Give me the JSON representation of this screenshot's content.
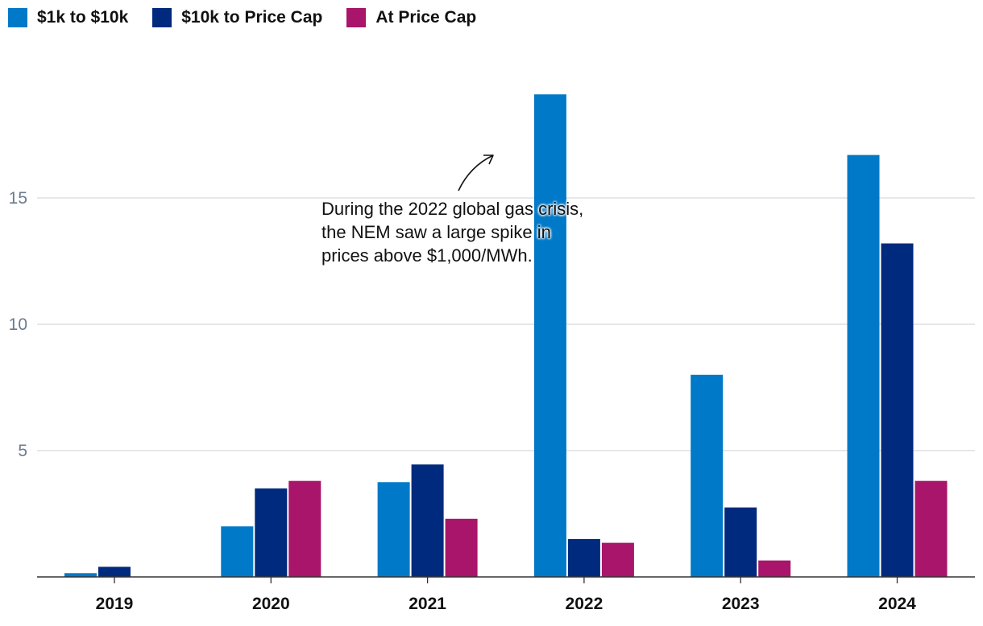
{
  "chart_data": {
    "type": "bar",
    "categories": [
      "2019",
      "2020",
      "2021",
      "2022",
      "2023",
      "2024"
    ],
    "series": [
      {
        "name": "$1k to $10k",
        "color": "#0079c8",
        "values": [
          0.15,
          2.0,
          3.75,
          19.1,
          8.0,
          16.7
        ]
      },
      {
        "name": "$10k to Price Cap",
        "color": "#002a7d",
        "values": [
          0.4,
          3.5,
          4.45,
          1.5,
          2.75,
          13.2
        ]
      },
      {
        "name": "At Price Cap",
        "color": "#a8156a",
        "values": [
          0,
          3.8,
          2.3,
          1.35,
          0.65,
          3.8
        ]
      }
    ],
    "yticks": [
      "5",
      "10",
      "15"
    ],
    "ylim": [
      0,
      20
    ],
    "title": "",
    "xlabel": "",
    "ylabel": "",
    "legend": "top-left",
    "annotation": {
      "text": "During the 2022 global gas crisis, the NEM saw a large spike in prices above $1,000/MWh."
    }
  }
}
